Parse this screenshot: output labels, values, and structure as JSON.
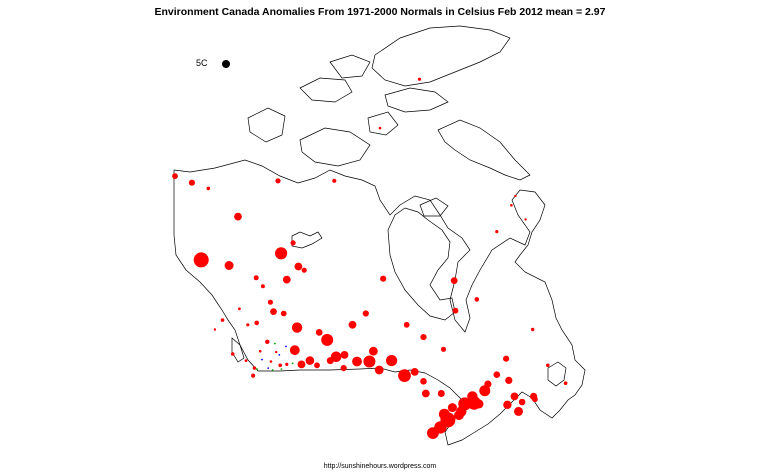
{
  "title": "Environment Canada Anomalies From 1971-2000 Normals in Celsius Feb 2012  mean = 2.97",
  "legend": {
    "label": "5C",
    "dot_color": "#000000"
  },
  "footer": "http://sunshinehours.wordpress.com",
  "colors": {
    "warm": "#ff0000",
    "cool_blue": "#0000ff",
    "cool_green": "#00aa00",
    "outline": "#000000"
  },
  "map": {
    "region": "canada-outline"
  },
  "stations": [
    [
      -141.0,
      69.6,
      2.2
    ],
    [
      -137.2,
      68.9,
      2.4
    ],
    [
      -133.5,
      68.3,
      1.4
    ],
    [
      -126.8,
      65.3,
      3.0
    ],
    [
      -117.8,
      69.1,
      2.0
    ],
    [
      -105.1,
      69.1,
      1.6
    ],
    [
      -94.8,
      74.7,
      1.0
    ],
    [
      -85.9,
      79.9,
      1.2
    ],
    [
      -68.5,
      63.7,
      1.2
    ],
    [
      -64.3,
      67.5,
      0.8
    ],
    [
      -65.2,
      66.5,
      1.0
    ],
    [
      -62.0,
      65.0,
      0.9
    ],
    [
      -135.1,
      60.7,
      5.8
    ],
    [
      -128.8,
      60.1,
      3.5
    ],
    [
      -117.1,
      61.4,
      4.7
    ],
    [
      -114.4,
      62.5,
      2.0
    ],
    [
      -113.2,
      60.0,
      3.0
    ],
    [
      -111.9,
      59.6,
      2.0
    ],
    [
      -115.8,
      58.6,
      3.0
    ],
    [
      -121.2,
      57.9,
      1.5
    ],
    [
      -122.7,
      58.8,
      1.9
    ],
    [
      -94.1,
      58.7,
      2.4
    ],
    [
      -78.1,
      58.5,
      2.6
    ],
    [
      -77.8,
      55.3,
      2.2
    ],
    [
      -73.0,
      56.5,
      1.8
    ],
    [
      -60.4,
      53.3,
      1.3
    ],
    [
      -118.8,
      55.2,
      2.6
    ],
    [
      -122.6,
      54.0,
      1.8
    ],
    [
      -120.2,
      52.0,
      1.7
    ],
    [
      -114.0,
      51.1,
      3.8
    ],
    [
      -113.5,
      53.5,
      4.0
    ],
    [
      -106.7,
      52.2,
      4.6
    ],
    [
      -104.7,
      50.4,
      4.1
    ],
    [
      -97.2,
      49.9,
      4.6
    ],
    [
      -100.0,
      49.9,
      3.8
    ],
    [
      -102.8,
      50.6,
      3.0
    ],
    [
      -96.3,
      51.0,
      3.4
    ],
    [
      -92.2,
      50.0,
      4.3
    ],
    [
      -89.3,
      48.4,
      4.9
    ],
    [
      -84.5,
      46.5,
      3.0
    ],
    [
      -81.0,
      46.5,
      2.7
    ],
    [
      -79.5,
      43.7,
      5.8
    ],
    [
      -81.2,
      42.9,
      4.8
    ],
    [
      -82.9,
      42.3,
      4.5
    ],
    [
      -75.7,
      45.4,
      5.0
    ],
    [
      -73.6,
      45.5,
      5.2
    ],
    [
      -71.2,
      46.8,
      4.2
    ],
    [
      -66.1,
      45.3,
      3.2
    ],
    [
      -63.6,
      44.6,
      3.5
    ],
    [
      -60.2,
      46.2,
      2.8
    ],
    [
      -66.4,
      50.2,
      2.4
    ],
    [
      -68.5,
      48.5,
      2.5
    ],
    [
      -123.1,
      49.2,
      1.3
    ],
    [
      -123.4,
      48.4,
      1.6
    ],
    [
      -125.0,
      50.0,
      1.1
    ],
    [
      -128.0,
      50.7,
      1.4
    ],
    [
      -130.3,
      54.3,
      1.4
    ],
    [
      -132.0,
      53.3,
      0.9
    ],
    [
      -119.4,
      49.9,
      1.0
    ],
    [
      -117.3,
      49.5,
      1.4
    ],
    [
      -110.6,
      50.0,
      3.3
    ],
    [
      -108.5,
      53.0,
      2.6
    ],
    [
      -101.0,
      53.8,
      3.0
    ],
    [
      -98.0,
      55.0,
      2.4
    ],
    [
      -88.8,
      53.8,
      2.2
    ],
    [
      -85.0,
      52.5,
      2.4
    ],
    [
      -80.5,
      51.2,
      2.0
    ],
    [
      -87.0,
      48.8,
      3.0
    ],
    [
      -85.0,
      47.8,
      2.5
    ],
    [
      -77.0,
      44.2,
      3.8
    ],
    [
      -78.5,
      45.0,
      3.5
    ],
    [
      -80.3,
      44.3,
      4.2
    ],
    [
      -72.5,
      45.4,
      3.5
    ],
    [
      -70.5,
      47.5,
      2.8
    ],
    [
      -74.0,
      46.2,
      4.0
    ],
    [
      -76.5,
      44.6,
      4.0
    ],
    [
      -64.5,
      46.2,
      3.0
    ],
    [
      -65.8,
      47.9,
      2.8
    ],
    [
      -62.8,
      45.6,
      2.5
    ],
    [
      -59.9,
      45.9,
      2.2
    ],
    [
      -57.0,
      49.5,
      1.4
    ],
    [
      -53.0,
      47.6,
      1.4
    ],
    [
      -95.0,
      49.0,
      3.4
    ],
    [
      -106.0,
      50.0,
      2.7
    ],
    [
      -112.5,
      49.6,
      3.0
    ],
    [
      -109.0,
      49.5,
      2.2
    ],
    [
      -103.0,
      49.2,
      2.4
    ],
    [
      -119.5,
      56.2,
      2.0
    ],
    [
      -116.5,
      55.0,
      2.2
    ],
    [
      -126.5,
      55.5,
      1.1
    ],
    [
      -124.6,
      53.8,
      1.2
    ],
    [
      -121.8,
      51.0,
      1.0
    ],
    [
      -118.2,
      50.9,
      0.9
    ],
    [
      -115.8,
      49.6,
      1.2
    ]
  ],
  "cool_stations": [
    [
      -120.0,
      49.2,
      0.9,
      "cool_blue"
    ],
    [
      -121.4,
      50.1,
      0.8,
      "cool_blue"
    ],
    [
      -117.5,
      50.6,
      0.8,
      "cool_blue"
    ],
    [
      -116.0,
      51.5,
      0.9,
      "cool_blue"
    ],
    [
      -122.5,
      49.1,
      0.9,
      "cool_green"
    ],
    [
      -119.0,
      49.0,
      0.9,
      "cool_green"
    ],
    [
      -117.0,
      49.1,
      0.9,
      "cool_green"
    ],
    [
      -114.5,
      49.7,
      0.8,
      "cool_green"
    ],
    [
      -118.5,
      51.8,
      0.8,
      "cool_green"
    ]
  ]
}
